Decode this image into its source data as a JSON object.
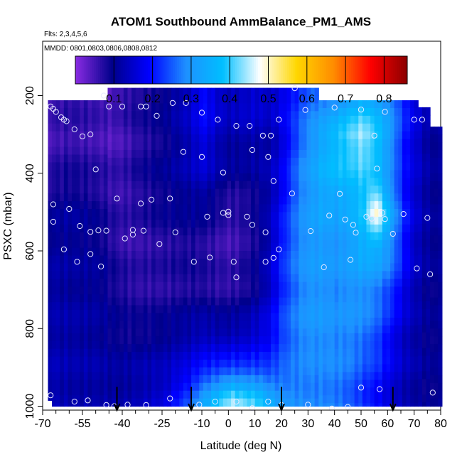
{
  "chart_data": {
    "type": "heatmap",
    "title": "ATOM1 Southbound AmmBalance_PM1_AMS",
    "flights_label": "Flts: 2,3,4,5,6",
    "dates_label": "MMDD: 0801,0803,0806,0808,0812",
    "xlabel": "Latitude (deg N)",
    "ylabel": "PSXC (mbar)",
    "xlim": [
      -70,
      80
    ],
    "ylim": [
      1010,
      60
    ],
    "x_ticks": [
      -70,
      -55,
      -40,
      -25,
      -10,
      0,
      10,
      20,
      30,
      40,
      50,
      60,
      70,
      80
    ],
    "x_tick_labels": [
      "-70",
      "-55",
      "-40",
      "-25",
      "-10",
      "0",
      "10",
      "20",
      "30",
      "40",
      "50",
      "60",
      "70",
      "80"
    ],
    "x_minor_ticks": [
      -65,
      -60,
      -50,
      -45,
      -35,
      -30,
      -20,
      -15,
      -5,
      5,
      15,
      25,
      35,
      45,
      55,
      65,
      75
    ],
    "y_ticks": [
      200,
      400,
      600,
      800,
      1000
    ],
    "y_tick_labels": [
      "200",
      "400",
      "600",
      "800",
      "1000"
    ],
    "colorbar": {
      "range": [
        0,
        0.86
      ],
      "breaks": [
        0.1,
        0.2,
        0.3,
        0.4,
        0.5,
        0.6,
        0.7,
        0.8
      ],
      "tick_labels": [
        "0.1",
        "0.2",
        "0.3",
        "0.4",
        "0.5",
        "0.6",
        "0.7",
        "0.8"
      ],
      "colors": [
        "#8a2be2",
        "#00008b",
        "#0000ff",
        "#1e90ff",
        "#00bfff",
        "#ffffff",
        "#ffd700",
        "#ff8c00",
        "#ff0000",
        "#8b0000"
      ]
    },
    "surface_markers_lat": [
      -42,
      -14,
      20,
      62
    ],
    "curtain": {
      "lats": [
        -67,
        -60,
        -50,
        -45,
        -40,
        -35,
        -25,
        -15,
        -10,
        -5,
        0,
        5,
        10,
        15,
        20,
        25,
        30,
        35,
        40,
        45,
        50,
        55,
        60,
        65,
        70,
        75,
        79
      ],
      "pres": [
        220,
        300,
        400,
        500,
        600,
        700,
        800,
        900,
        980
      ],
      "values": [
        [
          0.06,
          0.07,
          0.06,
          0.05,
          0.07,
          0.08,
          0.1,
          0.15,
          0.2,
          0.16,
          0.14,
          0.15,
          0.16,
          0.15,
          0.18,
          0.22,
          0.26,
          0.28,
          0.3,
          0.33,
          0.36,
          0.33,
          0.29,
          0.22,
          0.16,
          0.12,
          0.12
        ],
        [
          0.05,
          0.06,
          0.05,
          0.04,
          0.05,
          0.07,
          0.09,
          0.14,
          0.18,
          0.14,
          0.12,
          0.13,
          0.13,
          0.12,
          0.17,
          0.24,
          0.3,
          0.34,
          0.38,
          0.42,
          0.45,
          0.4,
          0.32,
          0.22,
          0.16,
          0.11,
          0.11
        ],
        [
          0.07,
          0.08,
          0.07,
          0.06,
          0.06,
          0.08,
          0.1,
          0.13,
          0.15,
          0.12,
          0.1,
          0.1,
          0.11,
          0.13,
          0.18,
          0.26,
          0.31,
          0.35,
          0.37,
          0.38,
          0.4,
          0.37,
          0.29,
          0.2,
          0.15,
          0.11,
          0.1
        ],
        [
          0.1,
          0.11,
          0.09,
          0.07,
          0.06,
          0.07,
          0.09,
          0.1,
          0.1,
          0.08,
          0.06,
          0.07,
          0.09,
          0.13,
          0.2,
          0.27,
          0.31,
          0.33,
          0.32,
          0.34,
          0.38,
          0.5,
          0.35,
          0.22,
          0.15,
          0.11,
          0.1
        ],
        [
          0.11,
          0.11,
          0.1,
          0.08,
          0.06,
          0.06,
          0.07,
          0.08,
          0.07,
          0.06,
          0.05,
          0.07,
          0.09,
          0.14,
          0.22,
          0.28,
          0.31,
          0.31,
          0.3,
          0.32,
          0.35,
          0.35,
          0.3,
          0.21,
          0.14,
          0.11,
          0.1
        ],
        [
          0.12,
          0.11,
          0.11,
          0.09,
          0.08,
          0.07,
          0.07,
          0.08,
          0.08,
          0.07,
          0.07,
          0.08,
          0.1,
          0.15,
          0.22,
          0.27,
          0.3,
          0.3,
          0.29,
          0.3,
          0.3,
          0.28,
          0.24,
          0.18,
          0.13,
          0.1,
          0.1
        ],
        [
          0.12,
          0.12,
          0.11,
          0.1,
          0.09,
          0.09,
          0.1,
          0.12,
          0.13,
          0.12,
          0.12,
          0.13,
          0.15,
          0.18,
          0.24,
          0.28,
          0.3,
          0.3,
          0.29,
          0.29,
          0.28,
          0.25,
          0.2,
          0.15,
          0.12,
          0.1,
          0.1
        ],
        [
          0.13,
          0.12,
          0.12,
          0.11,
          0.11,
          0.12,
          0.13,
          0.17,
          0.2,
          0.21,
          0.22,
          0.22,
          0.22,
          0.22,
          0.25,
          0.27,
          0.28,
          0.28,
          0.28,
          0.27,
          0.24,
          0.22,
          0.18,
          0.14,
          0.12,
          0.1,
          0.1
        ],
        [
          0.13,
          0.12,
          0.12,
          0.12,
          0.12,
          0.13,
          0.16,
          0.25,
          0.33,
          0.38,
          0.44,
          0.42,
          0.4,
          0.34,
          0.3,
          0.29,
          0.28,
          0.28,
          0.27,
          0.25,
          0.22,
          0.19,
          0.16,
          0.13,
          0.11,
          0.1,
          0.1
        ]
      ]
    },
    "samples": [
      [
        -67,
        228
      ],
      [
        -66,
        234
      ],
      [
        -65,
        242
      ],
      [
        -63,
        256
      ],
      [
        -62,
        262
      ],
      [
        -61,
        266
      ],
      [
        -58,
        287
      ],
      [
        -55,
        305
      ],
      [
        -52,
        300
      ],
      [
        -47,
        200
      ],
      [
        -45,
        228
      ],
      [
        -40,
        228
      ],
      [
        -33,
        228
      ],
      [
        -31,
        228
      ],
      [
        -27,
        252
      ],
      [
        -21,
        219
      ],
      [
        -16,
        219
      ],
      [
        -10,
        244
      ],
      [
        -4,
        262
      ],
      [
        3,
        278
      ],
      [
        8,
        278
      ],
      [
        13,
        303
      ],
      [
        16,
        303
      ],
      [
        19,
        262
      ],
      [
        25,
        181
      ],
      [
        29,
        237
      ],
      [
        40,
        231
      ],
      [
        50,
        236
      ],
      [
        55,
        303
      ],
      [
        59,
        242
      ],
      [
        70,
        262
      ],
      [
        73,
        262
      ],
      [
        -50,
        390
      ],
      [
        -42,
        465
      ],
      [
        -33,
        478
      ],
      [
        -29,
        468
      ],
      [
        -22,
        465
      ],
      [
        -17,
        345
      ],
      [
        -10,
        358
      ],
      [
        -2,
        398
      ],
      [
        9,
        340
      ],
      [
        15,
        358
      ],
      [
        17,
        420
      ],
      [
        24,
        452
      ],
      [
        38,
        509
      ],
      [
        42,
        453
      ],
      [
        47,
        533
      ],
      [
        52,
        512
      ],
      [
        56,
        388
      ],
      [
        58,
        502
      ],
      [
        -66,
        480
      ],
      [
        -66,
        525
      ],
      [
        -60,
        492
      ],
      [
        -56,
        536
      ],
      [
        -52,
        551
      ],
      [
        -49,
        547
      ],
      [
        -46,
        548
      ],
      [
        -39,
        568
      ],
      [
        -36,
        546
      ],
      [
        -32,
        548
      ],
      [
        -26,
        582
      ],
      [
        -20,
        552
      ],
      [
        -13,
        628
      ],
      [
        -8,
        512
      ],
      [
        -2,
        502
      ],
      [
        0,
        499
      ],
      [
        0,
        508
      ],
      [
        7,
        512
      ],
      [
        9,
        533
      ],
      [
        14,
        552
      ],
      [
        17,
        618
      ],
      [
        19,
        596
      ],
      [
        31,
        549
      ],
      [
        44,
        519
      ],
      [
        48,
        553
      ],
      [
        54,
        517
      ],
      [
        59,
        518
      ],
      [
        62,
        556
      ],
      [
        66,
        505
      ],
      [
        75,
        515
      ],
      [
        -62,
        596
      ],
      [
        -57,
        628
      ],
      [
        -52,
        608
      ],
      [
        -48,
        640
      ],
      [
        -36,
        558
      ],
      [
        -7,
        617
      ],
      [
        2,
        628
      ],
      [
        3,
        668
      ],
      [
        14,
        628
      ],
      [
        36,
        642
      ],
      [
        46,
        623
      ],
      [
        71,
        645
      ],
      [
        76,
        660
      ],
      [
        -67,
        972
      ],
      [
        -58,
        988
      ],
      [
        -53,
        985
      ],
      [
        -46,
        997
      ],
      [
        -43,
        1000
      ],
      [
        -38,
        996
      ],
      [
        -31,
        997
      ],
      [
        -22,
        980
      ],
      [
        -11,
        996
      ],
      [
        -5,
        988
      ],
      [
        3,
        988
      ],
      [
        9,
        1005
      ],
      [
        15,
        988
      ],
      [
        20,
        997
      ],
      [
        30,
        996
      ],
      [
        39,
        1006
      ],
      [
        45,
        1002
      ],
      [
        50,
        952
      ],
      [
        57,
        956
      ],
      [
        77,
        965
      ]
    ]
  }
}
